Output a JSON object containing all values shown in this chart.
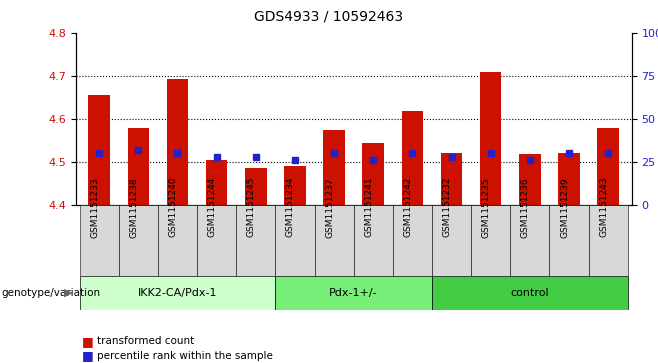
{
  "title": "GDS4933 / 10592463",
  "samples": [
    "GSM1151233",
    "GSM1151238",
    "GSM1151240",
    "GSM1151244",
    "GSM1151245",
    "GSM1151234",
    "GSM1151237",
    "GSM1151241",
    "GSM1151242",
    "GSM1151232",
    "GSM1151235",
    "GSM1151236",
    "GSM1151239",
    "GSM1151243"
  ],
  "red_values": [
    4.655,
    4.578,
    4.692,
    4.505,
    4.487,
    4.49,
    4.575,
    4.545,
    4.618,
    4.52,
    4.708,
    4.518,
    4.52,
    4.578
  ],
  "blue_percentiles": [
    30,
    32,
    30,
    28,
    28,
    26,
    30,
    26,
    30,
    28,
    30,
    26,
    30,
    30
  ],
  "ymin": 4.4,
  "ymax": 4.8,
  "groups": [
    {
      "label": "IKK2-CA/Pdx-1",
      "start": 0,
      "end": 5,
      "color": "#ccffcc"
    },
    {
      "label": "Pdx-1+/-",
      "start": 5,
      "end": 9,
      "color": "#77ee77"
    },
    {
      "label": "control",
      "start": 9,
      "end": 14,
      "color": "#44cc44"
    }
  ],
  "bar_color": "#cc1100",
  "blue_color": "#2222cc",
  "legend_red": "transformed count",
  "legend_blue": "percentile rank within the sample",
  "genotype_label": "genotype/variation"
}
